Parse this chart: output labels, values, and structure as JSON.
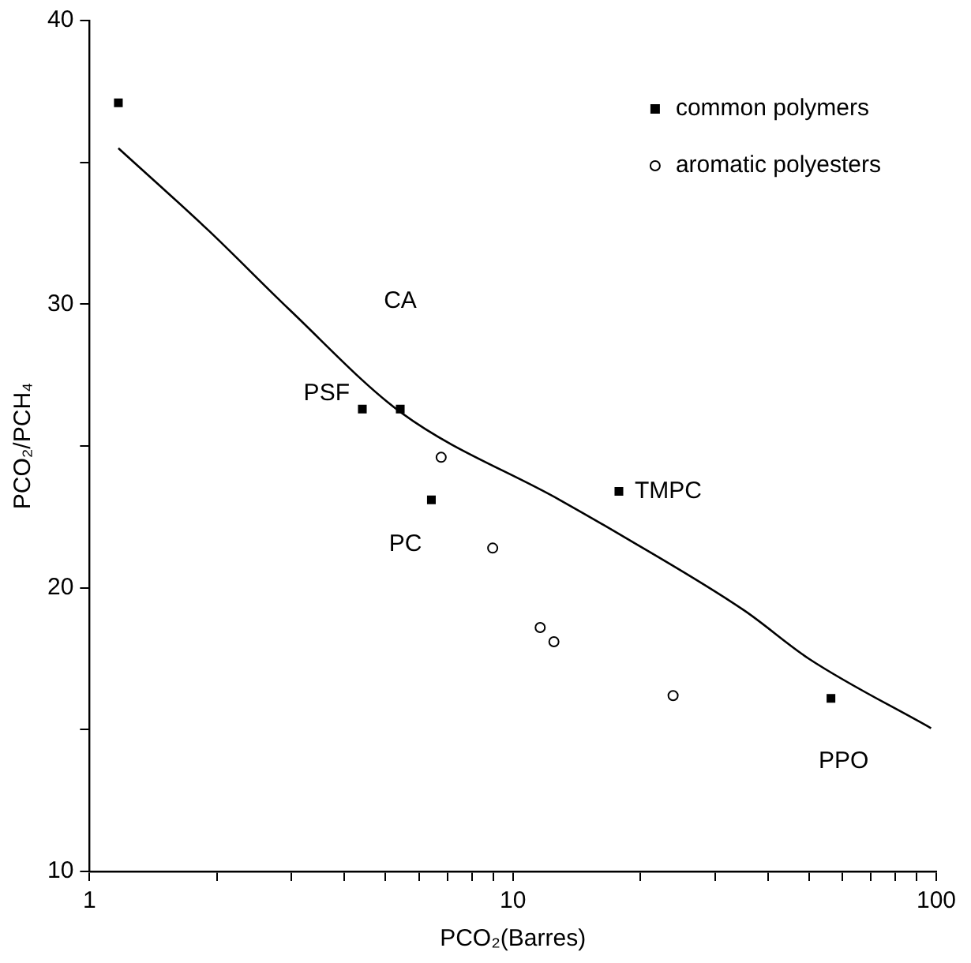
{
  "chart_data": {
    "type": "scatter",
    "xlabel": "PCO₂(Barres)",
    "ylabel": "PCO₂/PCH₄",
    "log": "x",
    "grid": false,
    "legend": "top right",
    "xlim": [
      1,
      100
    ],
    "xticks": [
      1,
      {
        "value": 2,
        "label": null
      },
      {
        "value": 3,
        "label": null
      },
      {
        "value": 4,
        "label": null
      },
      {
        "value": 5,
        "label": null
      },
      {
        "value": 6,
        "label": null
      },
      {
        "value": 7,
        "label": null
      },
      {
        "value": 8,
        "label": null
      },
      {
        "value": 9,
        "label": null
      },
      10,
      {
        "value": 20,
        "label": null
      },
      {
        "value": 30,
        "label": null
      },
      {
        "value": 40,
        "label": null
      },
      {
        "value": 50,
        "label": null
      },
      {
        "value": 60,
        "label": null
      },
      {
        "value": 70,
        "label": null
      },
      {
        "value": 80,
        "label": null
      },
      {
        "value": 90,
        "label": null
      },
      100
    ],
    "ylim": [
      10,
      40
    ],
    "yticks": [
      10,
      {
        "value": 15,
        "label": null
      },
      20,
      {
        "value": 25,
        "label": null
      },
      30,
      {
        "value": 35,
        "label": null
      },
      40
    ],
    "series": [
      {
        "name": "common polymers",
        "type": "scatter",
        "marker": "square",
        "color": "#000000",
        "x": [
          1.17,
          4.41,
          5.42,
          6.42,
          17.8,
          56.4
        ],
        "values": [
          37.1,
          26.3,
          26.3,
          23.1,
          23.4,
          16.1
        ]
      },
      {
        "name": "aromatic polyesters",
        "type": "scatter",
        "marker": "circle",
        "color": "#000000",
        "x": [
          6.77,
          8.96,
          11.6,
          12.5,
          23.9
        ],
        "values": [
          24.6,
          21.4,
          18.6,
          18.1,
          16.2
        ]
      },
      {
        "type": "line",
        "marker": "none",
        "line_style": "solid",
        "color": "#000000",
        "x": [
          1.17,
          1.91,
          2.97,
          5.42,
          12.9,
          17.8,
          35.2,
          50,
          97.2
        ],
        "values": [
          35.5,
          32.6,
          29.8,
          26.2,
          23.1,
          21.9,
          19.2,
          17.5,
          15.05
        ]
      }
    ],
    "annotations": [
      {
        "text": "PSF",
        "x": 4.41,
        "y": 26.3
      },
      "CA",
      {
        "text": "PC",
        "x": 6.42,
        "y": 23.1
      },
      {
        "text": "TMPC",
        "x": 17.8,
        "y": 23.4
      },
      {
        "text": "PPO",
        "x": 56.4,
        "y": 16.1
      }
    ]
  }
}
